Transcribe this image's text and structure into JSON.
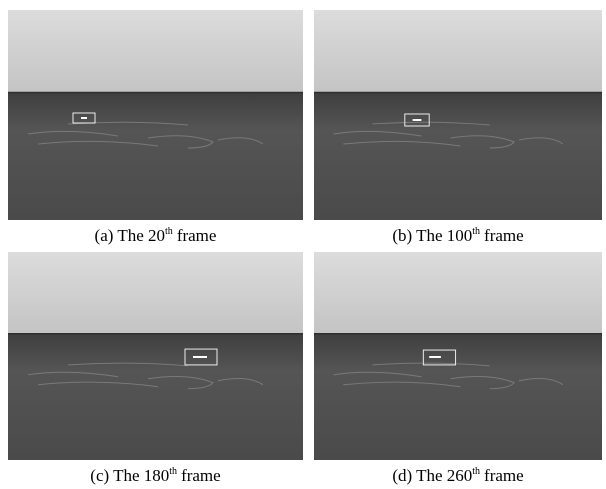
{
  "panels": [
    {
      "caption": "(a) The 20",
      "superscript": "th",
      "suffix": "frame"
    },
    {
      "caption": "(b) The 100",
      "superscript": "th",
      "suffix": "frame"
    },
    {
      "caption": "(c) The 180",
      "superscript": "th",
      "suffix": "frame"
    },
    {
      "caption": "(d) The 260",
      "superscript": "th",
      "suffix": "frame"
    }
  ]
}
